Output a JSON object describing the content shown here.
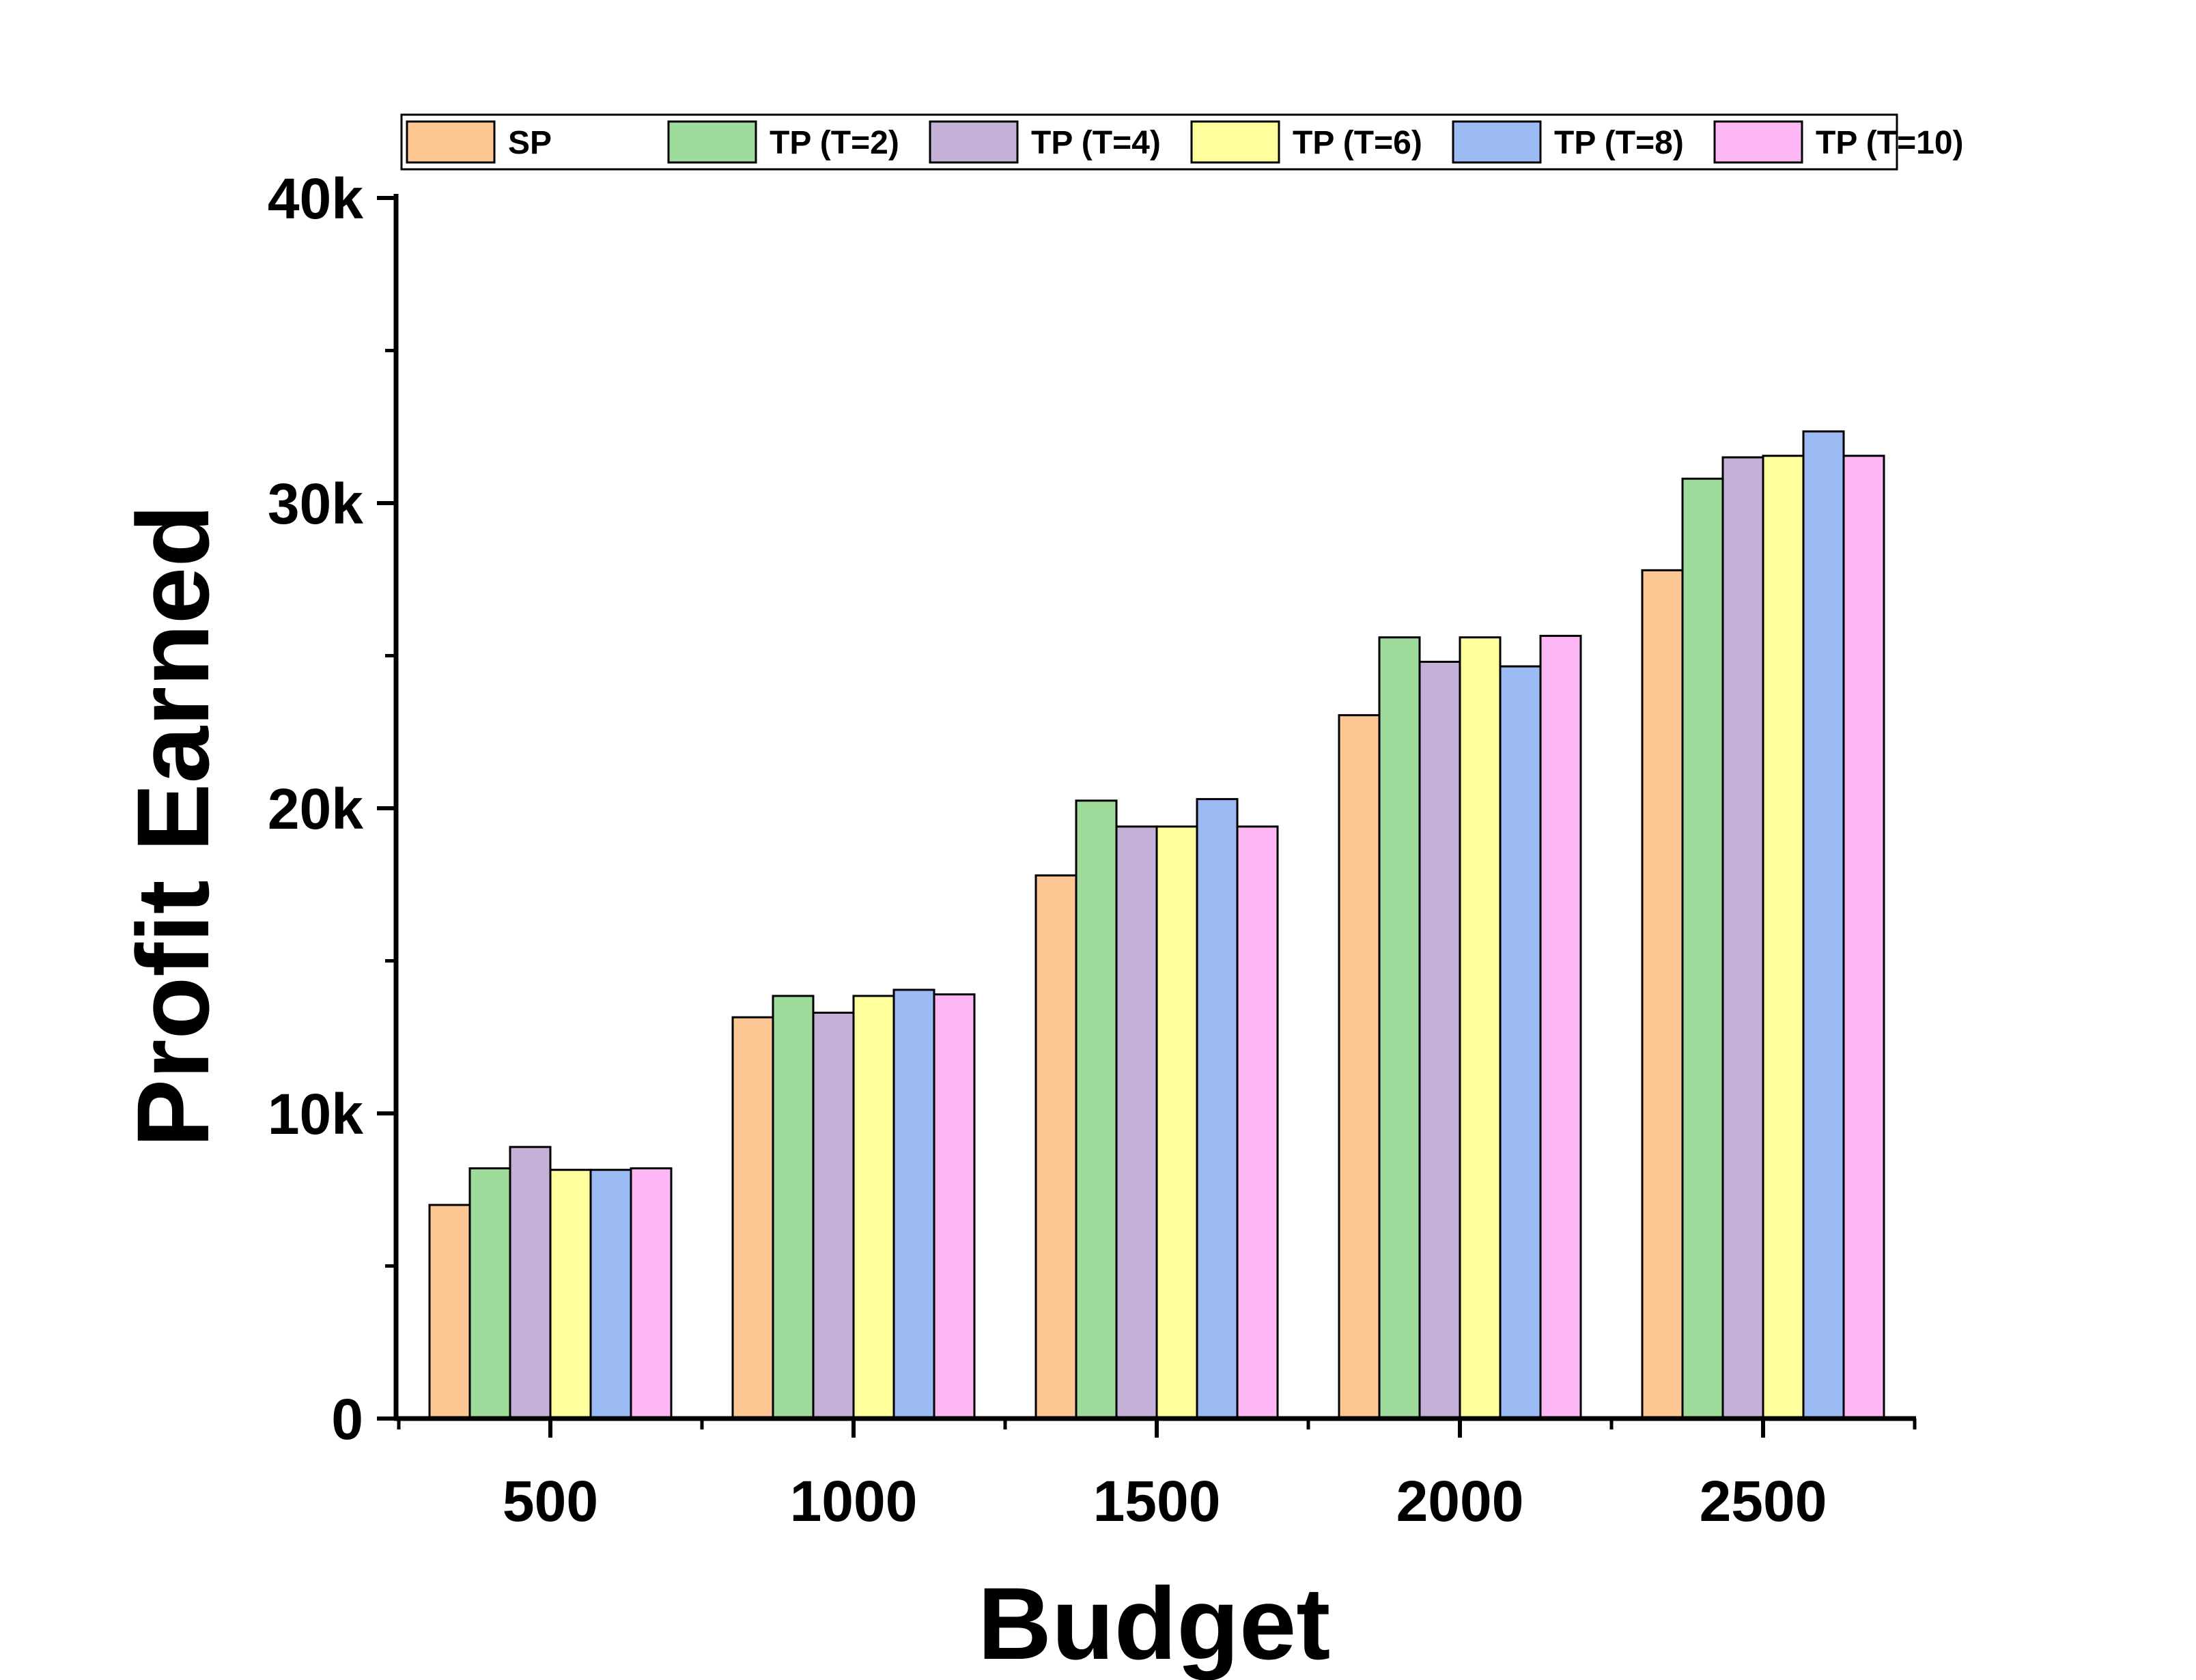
{
  "chart_data": {
    "type": "bar",
    "xlabel": "Budget",
    "ylabel": "Profit Earned",
    "categories": [
      "500",
      "1000",
      "1500",
      "2000",
      "2500"
    ],
    "ylim": [
      0,
      40000
    ],
    "y_ticks": [
      {
        "value": 0,
        "label": "0"
      },
      {
        "value": 10000,
        "label": "10k"
      },
      {
        "value": 20000,
        "label": "20k"
      },
      {
        "value": 30000,
        "label": "30k"
      },
      {
        "value": 40000,
        "label": "40k"
      }
    ],
    "y_minor_ticks": [
      5000,
      15000,
      25000,
      35000
    ],
    "legend_position": "top",
    "grid": false,
    "series": [
      {
        "name": "SP",
        "color": "#FDC793",
        "values": [
          7000,
          13150,
          17800,
          23050,
          27800
        ]
      },
      {
        "name": "TP (T=2)",
        "color": "#9FDC9C",
        "values": [
          8200,
          13850,
          20250,
          25600,
          30800
        ]
      },
      {
        "name": "TP (T=4)",
        "color": "#C5B1D8",
        "values": [
          8900,
          13300,
          19400,
          24800,
          31500
        ]
      },
      {
        "name": "TP (T=6)",
        "color": "#FFFF9E",
        "values": [
          8150,
          13850,
          19400,
          25600,
          31550
        ]
      },
      {
        "name": "TP (T=8)",
        "color": "#9CBBF5",
        "values": [
          8150,
          14050,
          20300,
          24650,
          32350
        ]
      },
      {
        "name": "TP (T=10)",
        "color": "#FDB7F5",
        "values": [
          8200,
          13900,
          19400,
          25650,
          31550
        ]
      }
    ]
  }
}
